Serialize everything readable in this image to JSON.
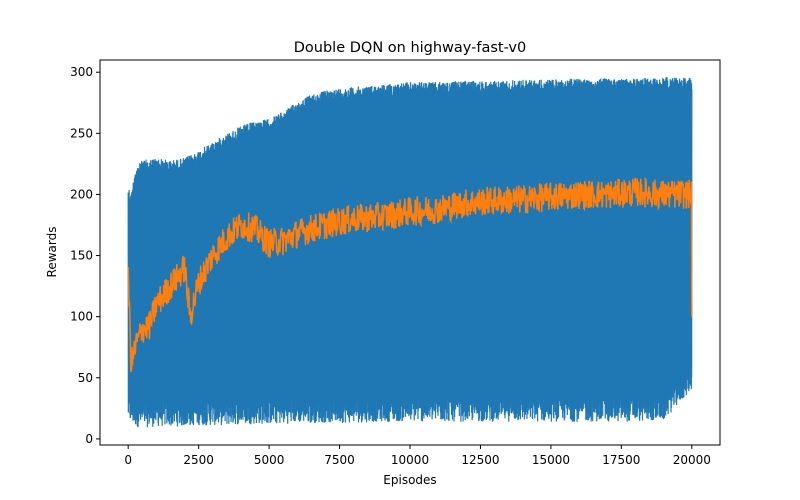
{
  "chart_data": {
    "type": "line",
    "title": "Double DQN on highway-fast-v0",
    "xlabel": "Episodes",
    "ylabel": "Rewards",
    "xlim": [
      -1000,
      21000
    ],
    "ylim": [
      -5,
      310
    ],
    "xticks": [
      0,
      2500,
      5000,
      7500,
      10000,
      12500,
      15000,
      17500,
      20000
    ],
    "yticks": [
      0,
      50,
      100,
      150,
      200,
      250,
      300
    ],
    "grid": false,
    "legend": "none",
    "series": [
      {
        "color": "#1f77b4",
        "style": "raw",
        "x": [
          0,
          100,
          250,
          500,
          1000,
          1500,
          2000,
          2500,
          3000,
          3500,
          4000,
          4500,
          5000,
          5500,
          6000,
          6500,
          7000,
          7500,
          8000,
          9000,
          10000,
          11000,
          12000,
          13000,
          14000,
          15000,
          16000,
          17000,
          18000,
          19000,
          20000
        ],
        "upper": [
          208,
          200,
          222,
          228,
          230,
          228,
          230,
          236,
          243,
          250,
          256,
          260,
          262,
          268,
          276,
          282,
          285,
          287,
          288,
          290,
          292,
          292,
          293,
          293,
          294,
          294,
          295,
          295,
          295,
          296,
          296
        ],
        "lower": [
          15,
          12,
          10,
          9,
          10,
          10,
          10,
          11,
          11,
          11,
          12,
          12,
          12,
          12,
          13,
          13,
          13,
          13,
          13,
          14,
          14,
          14,
          14,
          14,
          14,
          14,
          14,
          14,
          14,
          15,
          40
        ]
      },
      {
        "color": "#ff7f0e",
        "style": "smoothed",
        "x": [
          0,
          100,
          250,
          500,
          750,
          1000,
          1500,
          2000,
          2200,
          2500,
          3000,
          3500,
          4000,
          4500,
          5000,
          5500,
          6000,
          6500,
          7000,
          7500,
          8000,
          9000,
          10000,
          11000,
          12000,
          13000,
          14000,
          15000,
          16000,
          17000,
          18000,
          19000,
          20000
        ],
        "values": [
          140,
          60,
          75,
          90,
          92,
          110,
          125,
          140,
          100,
          128,
          150,
          165,
          175,
          172,
          160,
          162,
          168,
          172,
          175,
          178,
          180,
          182,
          186,
          188,
          193,
          195,
          196,
          198,
          200,
          200,
          202,
          200,
          200
        ]
      }
    ]
  }
}
